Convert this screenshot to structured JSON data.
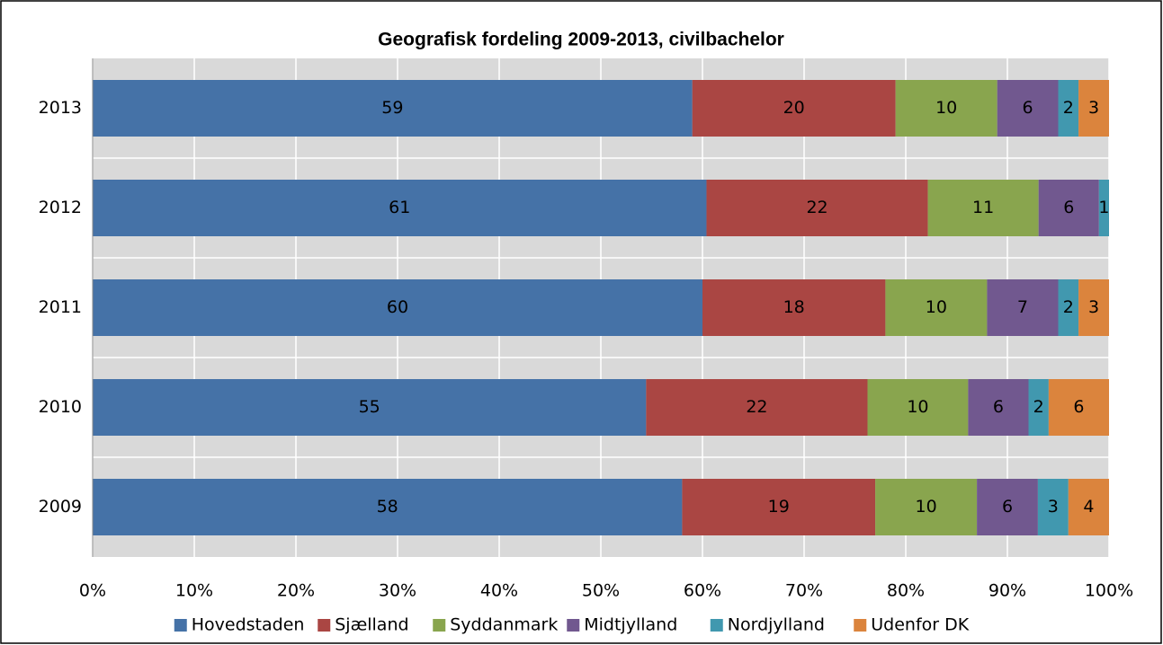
{
  "chart_data": {
    "type": "bar",
    "orientation": "horizontal",
    "stacked": "percent",
    "title": "Geografisk fordeling 2009-2013, civilbachelor",
    "categories": [
      "2013",
      "2012",
      "2011",
      "2010",
      "2009"
    ],
    "series": [
      {
        "name": "Hovedstaden",
        "color": "#4572a7",
        "values": [
          59,
          61,
          60,
          55,
          58
        ]
      },
      {
        "name": "Sjælland",
        "color": "#aa4643",
        "values": [
          20,
          22,
          18,
          22,
          19
        ]
      },
      {
        "name": "Syddanmark",
        "color": "#89a54e",
        "values": [
          10,
          11,
          10,
          10,
          10
        ]
      },
      {
        "name": "Midtjylland",
        "color": "#71588f",
        "values": [
          6,
          6,
          7,
          6,
          6
        ]
      },
      {
        "name": "Nordjylland",
        "color": "#4198af",
        "values": [
          2,
          1,
          2,
          2,
          3
        ]
      },
      {
        "name": "Udenfor DK",
        "color": "#db843d",
        "values": [
          3,
          null,
          3,
          6,
          4
        ]
      }
    ],
    "xlim": [
      0,
      100
    ],
    "xticks": [
      {
        "value": 0,
        "label": "0%"
      },
      {
        "value": 10,
        "label": "10%"
      },
      {
        "value": 20,
        "label": "20%"
      },
      {
        "value": 30,
        "label": "30%"
      },
      {
        "value": 40,
        "label": "40%"
      },
      {
        "value": 50,
        "label": "50%"
      },
      {
        "value": 60,
        "label": "60%"
      },
      {
        "value": 70,
        "label": "70%"
      },
      {
        "value": 80,
        "label": "80%"
      },
      {
        "value": 90,
        "label": "90%"
      },
      {
        "value": 100,
        "label": "100%"
      }
    ],
    "grid": true,
    "legend": "bottom"
  }
}
